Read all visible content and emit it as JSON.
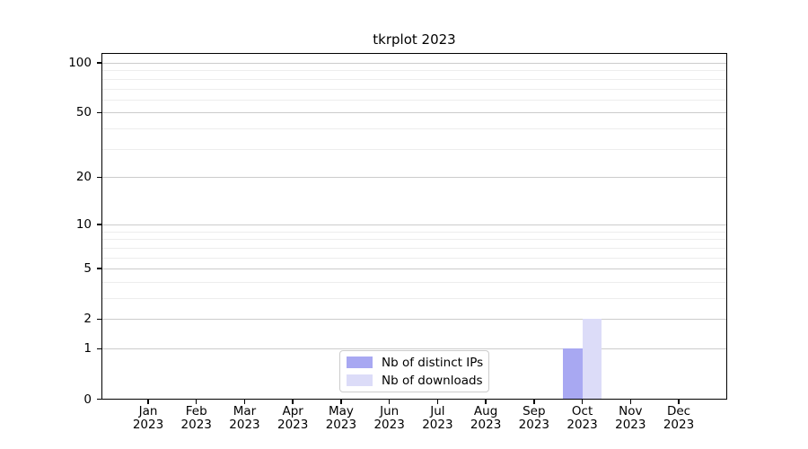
{
  "chart_data": {
    "type": "bar",
    "title": "tkrplot 2023",
    "categories": [
      "Jan",
      "Feb",
      "Mar",
      "Apr",
      "May",
      "Jun",
      "Jul",
      "Aug",
      "Sep",
      "Oct",
      "Nov",
      "Dec"
    ],
    "year_label": "2023",
    "series": [
      {
        "name": "Nb of distinct IPs",
        "color": "#a8a8f2",
        "values": [
          0,
          0,
          0,
          0,
          0,
          0,
          0,
          0,
          0,
          1,
          0,
          0
        ]
      },
      {
        "name": "Nb of downloads",
        "color": "#dcdcf8",
        "values": [
          0,
          0,
          0,
          0,
          0,
          0,
          0,
          0,
          0,
          2,
          0,
          0
        ]
      }
    ],
    "y_axis": {
      "scale": "log1p",
      "major_ticks": [
        0,
        1,
        2,
        5,
        10,
        20,
        50,
        100
      ],
      "minor_gridlines": [
        3,
        4,
        6,
        7,
        8,
        9,
        30,
        40,
        60,
        70,
        80,
        90
      ],
      "ylim": [
        0,
        100
      ]
    },
    "grid": "horizontal",
    "legend_position": "bottom-center-inside"
  },
  "colors": {
    "grid_major": "#cccccc",
    "grid_minor": "#ededed",
    "axis": "#000000",
    "legend_border": "#cccccc"
  }
}
